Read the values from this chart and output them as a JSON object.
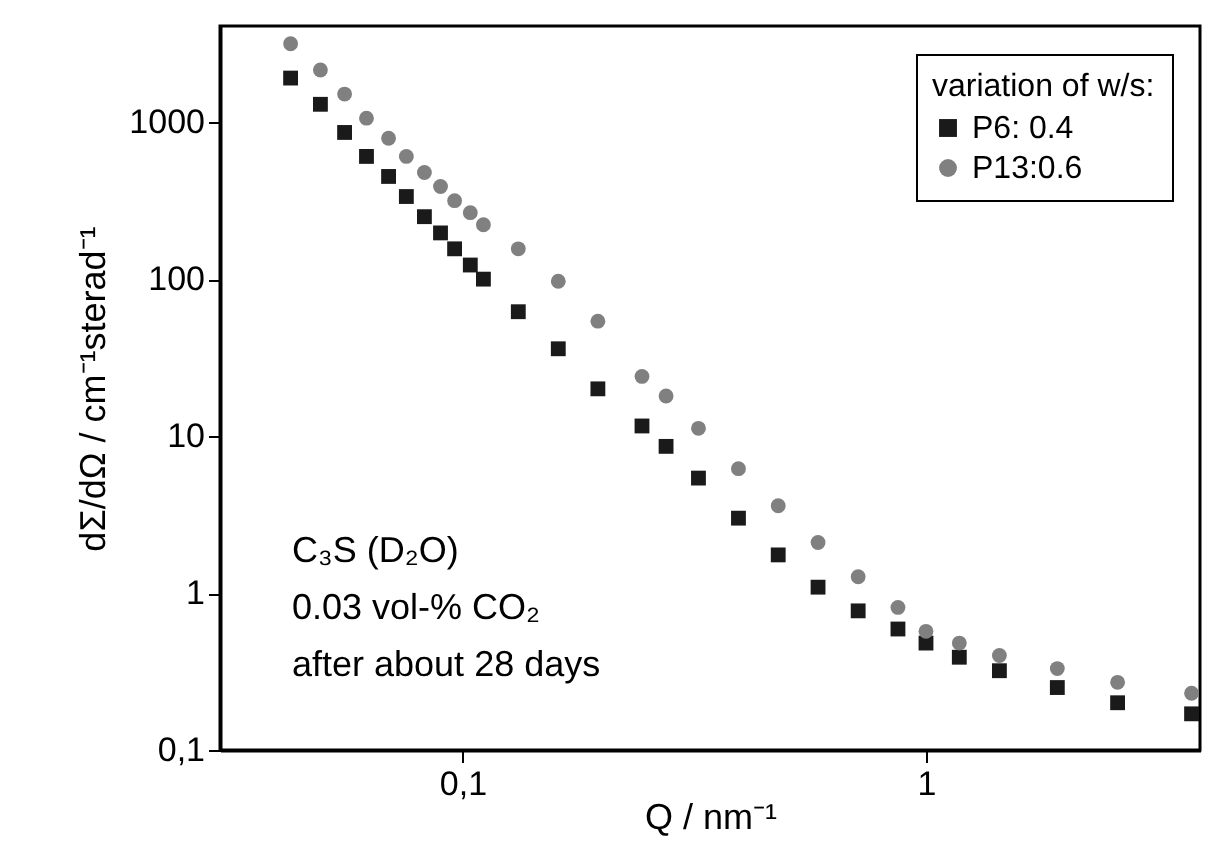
{
  "chart_data": {
    "type": "scatter",
    "xlabel": "Q / nm⁻¹",
    "ylabel": "dΣ/dΩ / cm⁻¹sterad⁻¹",
    "legend_title": "variation of w/s:",
    "legend": "top right",
    "log": "xy",
    "grid": false,
    "xlim": [
      0.03,
      3.9
    ],
    "ylim": [
      0.1,
      4100
    ],
    "xticks": [
      {
        "value": 0.1,
        "label": "0,1"
      },
      1
    ],
    "yticks": [
      {
        "value": 0.1,
        "label": "0,1"
      },
      1,
      10,
      100,
      1000
    ],
    "annotations": [
      "C₃S (D₂O)",
      "0.03 vol-% CO₂",
      "after about 28 days"
    ],
    "x": [
      0.0426,
      0.0494,
      0.0557,
      0.0621,
      0.0693,
      0.0757,
      0.0828,
      0.0897,
      0.0962,
      0.104,
      0.111,
      0.132,
      0.161,
      0.196,
      0.244,
      0.275,
      0.323,
      0.394,
      0.48,
      0.585,
      0.714,
      0.87,
      1.0,
      1.18,
      1.44,
      1.92,
      2.59,
      3.74
    ],
    "series": [
      {
        "name": "P6:  0.4",
        "color": "#1a1a1a",
        "marker": "square",
        "values": [
          1910,
          1300,
          860,
          605,
          451,
          336,
          250,
          197,
          156,
          123,
          100,
          62,
          36,
          20,
          11.6,
          8.6,
          5.4,
          3.0,
          1.75,
          1.09,
          0.77,
          0.59,
          0.48,
          0.39,
          0.32,
          0.25,
          0.2,
          0.17
        ]
      },
      {
        "name": "P13:0.6",
        "color": "#808080",
        "marker": "circle",
        "values": [
          3160,
          2150,
          1510,
          1060,
          790,
          605,
          478,
          389,
          316,
          265,
          222,
          156,
          97,
          54,
          24,
          18,
          11.2,
          6.2,
          3.6,
          2.1,
          1.27,
          0.81,
          0.57,
          0.48,
          0.4,
          0.33,
          0.27,
          0.23
        ]
      }
    ]
  }
}
